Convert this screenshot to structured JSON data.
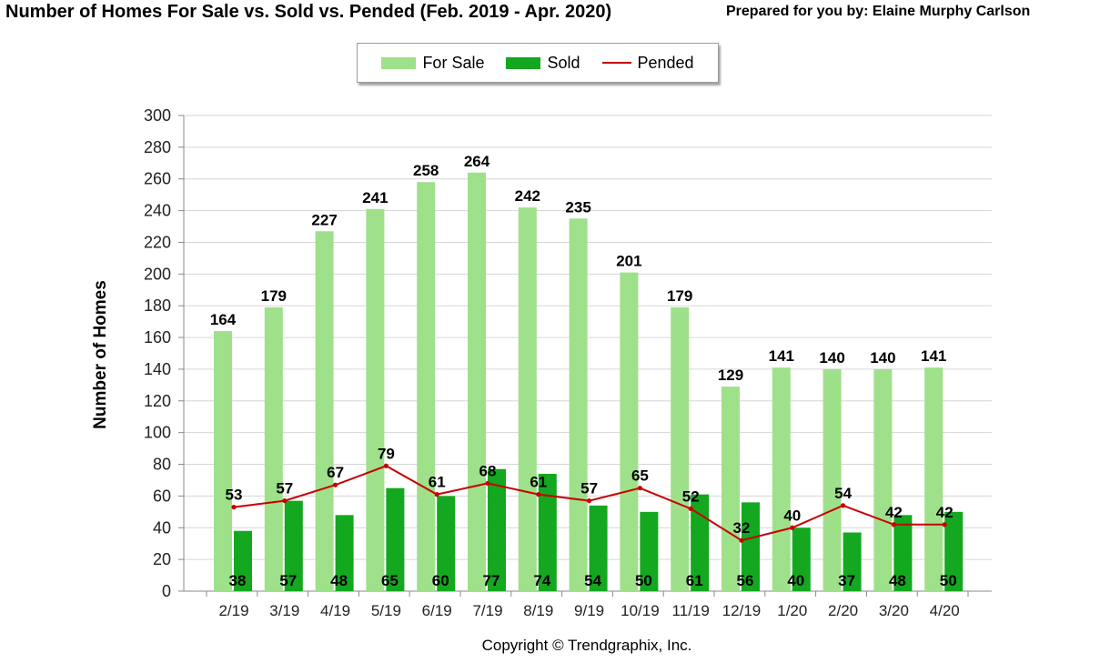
{
  "header": {
    "title": "Number of Homes For Sale vs. Sold vs. Pended (Feb. 2019 - Apr. 2020)",
    "prepared_by": "Prepared for you by: Elaine Murphy Carlson"
  },
  "footer": {
    "copyright": "Copyright © Trendgraphix, Inc."
  },
  "chart_data": {
    "type": "bar",
    "title": "Number of Homes For Sale vs. Sold vs. Pended (Feb. 2019 - Apr. 2020)",
    "xlabel": "",
    "ylabel": "Number of Homes",
    "ylim": [
      0,
      300
    ],
    "yticks": [
      0,
      20,
      40,
      60,
      80,
      100,
      120,
      140,
      160,
      180,
      200,
      220,
      240,
      260,
      280,
      300
    ],
    "grid": true,
    "legend_position": "top-center",
    "categories": [
      "2/19",
      "3/19",
      "4/19",
      "5/19",
      "6/19",
      "7/19",
      "8/19",
      "9/19",
      "10/19",
      "11/19",
      "12/19",
      "1/20",
      "2/20",
      "3/20",
      "4/20"
    ],
    "series": [
      {
        "name": "For Sale",
        "kind": "bar",
        "color": "#9fe08a",
        "values": [
          164,
          179,
          227,
          241,
          258,
          264,
          242,
          235,
          201,
          179,
          129,
          141,
          140,
          140,
          141
        ]
      },
      {
        "name": "Sold",
        "kind": "bar",
        "color": "#13a81f",
        "values": [
          38,
          57,
          48,
          65,
          60,
          77,
          74,
          54,
          50,
          61,
          56,
          40,
          37,
          48,
          50
        ]
      },
      {
        "name": "Pended",
        "kind": "line",
        "color": "#c80000",
        "values": [
          53,
          57,
          67,
          79,
          61,
          68,
          61,
          57,
          65,
          52,
          32,
          40,
          54,
          42,
          42
        ]
      }
    ]
  }
}
